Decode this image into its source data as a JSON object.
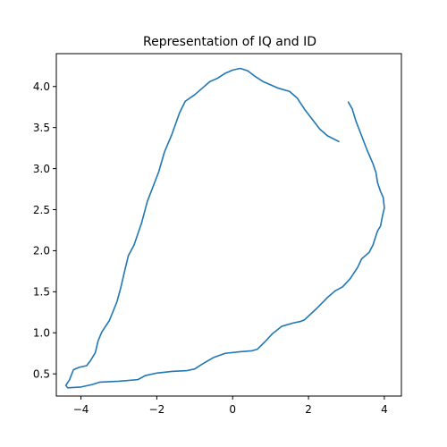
{
  "chart_data": {
    "type": "line",
    "title": "Representation of IQ and ID",
    "xlabel": "",
    "ylabel": "",
    "xlim": [
      -4.65,
      4.45
    ],
    "ylim": [
      0.23,
      4.4
    ],
    "x_ticks": [
      -4,
      -2,
      0,
      2,
      4
    ],
    "y_ticks": [
      0.5,
      1.0,
      1.5,
      2.0,
      2.5,
      3.0,
      3.5,
      4.0
    ],
    "x_tick_labels": [
      "−4",
      "−2",
      "0",
      "2",
      "4"
    ],
    "y_tick_labels": [
      "0.5",
      "1.0",
      "1.5",
      "2.0",
      "2.5",
      "3.0",
      "3.5",
      "4.0"
    ],
    "grid": false,
    "legend": false,
    "series": [
      {
        "color": "#1f77b4",
        "points": [
          [
            3.05,
            3.81
          ],
          [
            3.15,
            3.73
          ],
          [
            3.25,
            3.58
          ],
          [
            3.4,
            3.4
          ],
          [
            3.55,
            3.22
          ],
          [
            3.7,
            3.06
          ],
          [
            3.78,
            2.95
          ],
          [
            3.82,
            2.83
          ],
          [
            3.9,
            2.72
          ],
          [
            3.97,
            2.65
          ],
          [
            4.0,
            2.52
          ],
          [
            3.95,
            2.42
          ],
          [
            3.9,
            2.3
          ],
          [
            3.82,
            2.24
          ],
          [
            3.7,
            2.07
          ],
          [
            3.6,
            1.98
          ],
          [
            3.5,
            1.94
          ],
          [
            3.4,
            1.9
          ],
          [
            3.3,
            1.8
          ],
          [
            3.1,
            1.66
          ],
          [
            2.9,
            1.56
          ],
          [
            2.7,
            1.51
          ],
          [
            2.5,
            1.43
          ],
          [
            2.2,
            1.29
          ],
          [
            1.9,
            1.16
          ],
          [
            1.8,
            1.14
          ],
          [
            1.6,
            1.12
          ],
          [
            1.3,
            1.08
          ],
          [
            1.05,
            0.99
          ],
          [
            0.85,
            0.89
          ],
          [
            0.65,
            0.8
          ],
          [
            0.5,
            0.78
          ],
          [
            0.2,
            0.77
          ],
          [
            -0.2,
            0.75
          ],
          [
            -0.5,
            0.7
          ],
          [
            -0.8,
            0.62
          ],
          [
            -1.0,
            0.56
          ],
          [
            -1.2,
            0.54
          ],
          [
            -1.6,
            0.53
          ],
          [
            -2.0,
            0.51
          ],
          [
            -2.3,
            0.48
          ],
          [
            -2.5,
            0.43
          ],
          [
            -3.0,
            0.41
          ],
          [
            -3.5,
            0.4
          ],
          [
            -3.7,
            0.37
          ],
          [
            -4.0,
            0.34
          ],
          [
            -4.35,
            0.33
          ],
          [
            -4.4,
            0.36
          ],
          [
            -4.3,
            0.43
          ],
          [
            -4.2,
            0.55
          ],
          [
            -4.05,
            0.58
          ],
          [
            -3.85,
            0.6
          ],
          [
            -3.75,
            0.66
          ],
          [
            -3.62,
            0.76
          ],
          [
            -3.55,
            0.9
          ],
          [
            -3.45,
            1.01
          ],
          [
            -3.25,
            1.15
          ],
          [
            -3.05,
            1.38
          ],
          [
            -2.95,
            1.55
          ],
          [
            -2.85,
            1.75
          ],
          [
            -2.75,
            1.94
          ],
          [
            -2.6,
            2.07
          ],
          [
            -2.4,
            2.34
          ],
          [
            -2.25,
            2.6
          ],
          [
            -2.1,
            2.78
          ],
          [
            -1.95,
            2.96
          ],
          [
            -1.8,
            3.2
          ],
          [
            -1.6,
            3.42
          ],
          [
            -1.4,
            3.68
          ],
          [
            -1.25,
            3.82
          ],
          [
            -1.0,
            3.9
          ],
          [
            -0.8,
            3.98
          ],
          [
            -0.6,
            4.06
          ],
          [
            -0.4,
            4.1
          ],
          [
            -0.2,
            4.16
          ],
          [
            0.0,
            4.2
          ],
          [
            0.2,
            4.22
          ],
          [
            0.4,
            4.19
          ],
          [
            0.6,
            4.12
          ],
          [
            0.8,
            4.06
          ],
          [
            1.0,
            4.02
          ],
          [
            1.2,
            3.98
          ],
          [
            1.5,
            3.94
          ],
          [
            1.7,
            3.86
          ],
          [
            1.9,
            3.72
          ],
          [
            2.1,
            3.6
          ],
          [
            2.3,
            3.48
          ],
          [
            2.5,
            3.4
          ],
          [
            2.8,
            3.33
          ]
        ]
      }
    ]
  }
}
